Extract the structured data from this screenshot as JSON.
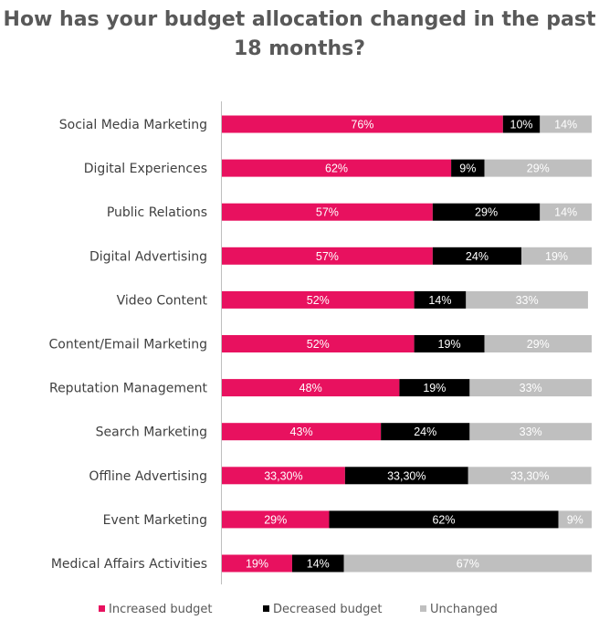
{
  "chart_data": {
    "type": "bar",
    "orientation": "horizontal",
    "stacked": true,
    "title": "How has your budget allocation changed in the past 18 months?",
    "categories": [
      "Social Media Marketing",
      "Digital Experiences",
      "Public Relations",
      "Digital Advertising",
      "Video Content",
      "Content/Email Marketing",
      "Reputation Management",
      "Search Marketing",
      "Offline Advertising",
      "Event Marketing",
      "Medical Affairs Activities"
    ],
    "series": [
      {
        "name": "Increased budget",
        "color": "#E8115F",
        "values": [
          76,
          62,
          57,
          57,
          52,
          52,
          48,
          43,
          33.3,
          29,
          19
        ],
        "labels": [
          "76%",
          "62%",
          "57%",
          "57%",
          "52%",
          "52%",
          "48%",
          "43%",
          "33,30%",
          "29%",
          "19%"
        ],
        "label_color": "#ffffff"
      },
      {
        "name": "Decreased budget",
        "color": "#000000",
        "values": [
          10,
          9,
          29,
          24,
          14,
          19,
          19,
          24,
          33.3,
          62,
          14
        ],
        "labels": [
          "10%",
          "9%",
          "29%",
          "24%",
          "14%",
          "19%",
          "19%",
          "24%",
          "33,30%",
          "62%",
          "14%"
        ],
        "label_color": "#ffffff"
      },
      {
        "name": "Unchanged",
        "color": "#BFBFBF",
        "values": [
          14,
          29,
          14,
          19,
          33,
          29,
          33,
          33,
          33.3,
          9,
          67
        ],
        "labels": [
          "14%",
          "29%",
          "14%",
          "19%",
          "33%",
          "29%",
          "33%",
          "33%",
          "33,30%",
          "9%",
          "67%"
        ],
        "label_color": "#ffffff"
      }
    ],
    "xlim": [
      0,
      100
    ],
    "grid": false,
    "legend_position": "bottom"
  }
}
